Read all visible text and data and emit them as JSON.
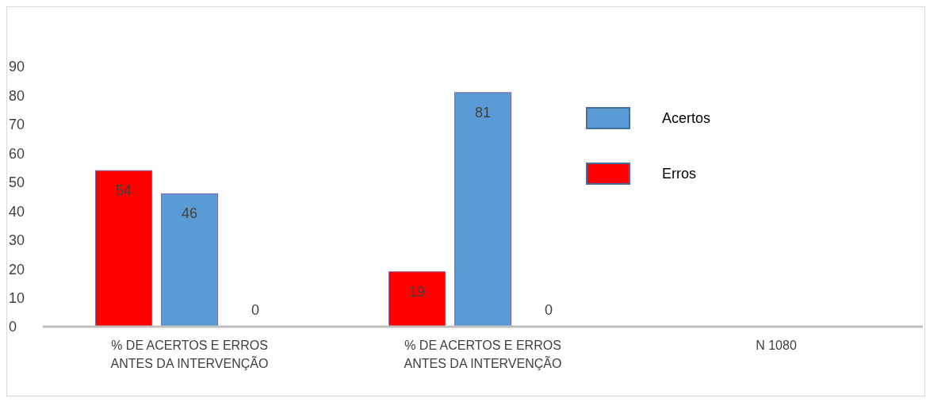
{
  "chart_data": {
    "type": "bar",
    "categories": [
      "% DE ACERTOS E ERROS ANTES DA INTERVENÇÃO",
      "% DE ACERTOS E ERROS ANTES DA INTERVENÇÃO",
      "N 1080"
    ],
    "series": [
      {
        "name": "Erros",
        "color": "#ff0000",
        "values": [
          54,
          19,
          null
        ]
      },
      {
        "name": "Acertos",
        "color": "#5b9bd5",
        "values": [
          46,
          81,
          null
        ]
      },
      {
        "color": "#a5a5a5",
        "values": [
          0,
          0,
          null
        ]
      }
    ],
    "ylim": [
      0,
      90
    ],
    "yticks": [
      0,
      10,
      20,
      30,
      40,
      50,
      60,
      70,
      80,
      90
    ],
    "data_labels": true,
    "legend": "right",
    "grid": false
  }
}
